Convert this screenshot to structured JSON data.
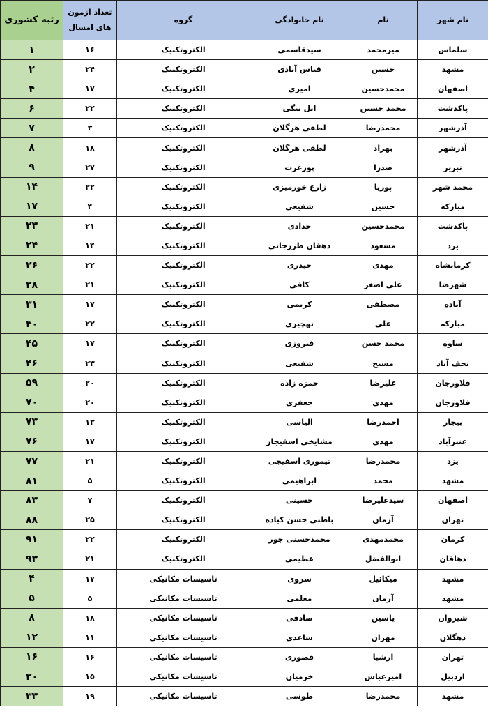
{
  "table": {
    "headers": {
      "city": "نام شهر",
      "first_name": "نام",
      "last_name": "نام خانوادگی",
      "group": "گروه",
      "exam_count_line1": "تعداد آزمون",
      "exam_count_line2": "های امسال",
      "national_rank": "رتبه کشوری"
    },
    "colors": {
      "header_bg": "#b4c6e7",
      "rank_header_bg": "#a9d08e",
      "rank_cell_bg": "#c6e0b4"
    },
    "rows": [
      [
        "سلماس",
        "میرمحمد",
        "سیدقاسمی",
        "الکتروتکنیک",
        "۱۶",
        "۱"
      ],
      [
        "مشهد",
        "حسین",
        "قیاس آبادی",
        "الکتروتکنیک",
        "۲۴",
        "۲"
      ],
      [
        "اصفهان",
        "محمدحسین",
        "امیری",
        "الکتروتکنیک",
        "۱۷",
        "۴"
      ],
      [
        "پاکدشت",
        "محمد حسین",
        "ایل بیگی",
        "الکتروتکنیک",
        "۲۲",
        "۶"
      ],
      [
        "آذرشهر",
        "محمدرضا",
        "لطفی هرگلان",
        "الکتروتکنیک",
        "۳",
        "۷"
      ],
      [
        "آذرشهر",
        "بهزاد",
        "لطفی هرگلان",
        "الکتروتکنیک",
        "۱۸",
        "۸"
      ],
      [
        "تبریز",
        "صدرا",
        "پورعزت",
        "الکتروتکنیک",
        "۲۷",
        "۹"
      ],
      [
        "محمد شهر",
        "پوریا",
        "زارع خورمیزی",
        "الکتروتکنیک",
        "۲۲",
        "۱۴"
      ],
      [
        "مبارکه",
        "حسین",
        "شفیعی",
        "الکتروتکنیک",
        "۴",
        "۱۷"
      ],
      [
        "پاکدشت",
        "محمدحسین",
        "حدادی",
        "الکتروتکنیک",
        "۲۱",
        "۲۳"
      ],
      [
        "یزد",
        "مسعود",
        "دهقان طزرجانی",
        "الکتروتکنیک",
        "۱۴",
        "۲۴"
      ],
      [
        "کرمانشاه",
        "مهدی",
        "حیدری",
        "الکتروتکنیک",
        "۲۲",
        "۲۶"
      ],
      [
        "شهرضا",
        "علی اصغر",
        "کافی",
        "الکتروتکنیک",
        "۲۱",
        "۲۸"
      ],
      [
        "آباده",
        "مصطفی",
        "کریمی",
        "الکتروتکنیک",
        "۱۷",
        "۳۱"
      ],
      [
        "مبارکه",
        "علی",
        "نهچیری",
        "الکتروتکنیک",
        "۲۲",
        "۴۰"
      ],
      [
        "ساوه",
        "محمد حسن",
        "فیروزی",
        "الکتروتکنیک",
        "۱۷",
        "۴۵"
      ],
      [
        "نجف آباد",
        "مسیح",
        "شفیعی",
        "الکتروتکنیک",
        "۲۳",
        "۴۶"
      ],
      [
        "فلاورجان",
        "علیرضا",
        "حمزه زاده",
        "الکتروتکنیک",
        "۲۰",
        "۵۹"
      ],
      [
        "فلاورجان",
        "مهدی",
        "جعفری",
        "الکتروتکنیک",
        "۲۰",
        "۷۰"
      ],
      [
        "بیجار",
        "احمدرضا",
        "الیاسی",
        "الکتروتکنیک",
        "۱۳",
        "۷۳"
      ],
      [
        "عنبرآباد",
        "مهدی",
        "مشایخی اسفیجار",
        "الکتروتکنیک",
        "۱۷",
        "۷۶"
      ],
      [
        "یزد",
        "محمدرضا",
        "تیموری اسفیجی",
        "الکتروتکنیک",
        "۲۱",
        "۷۷"
      ],
      [
        "مشهد",
        "محمد",
        "ابراهیمی",
        "الکتروتکنیک",
        "۵",
        "۸۱"
      ],
      [
        "اصفهان",
        "سیدعلیرضا",
        "حسینی",
        "الکتروتکنیک",
        "۷",
        "۸۳"
      ],
      [
        "تهران",
        "آرمان",
        "باطنی حسن کیاده",
        "الکتروتکنیک",
        "۲۵",
        "۸۸"
      ],
      [
        "کرمان",
        "محمدمهدی",
        "محمدحسنی جور",
        "الکتروتکنیک",
        "۲۲",
        "۹۱"
      ],
      [
        "دهاقان",
        "ابوالفضل",
        "عظیمی",
        "الکتروتکنیک",
        "۲۱",
        "۹۳"
      ],
      [
        "مشهد",
        "میکائیل",
        "سروی",
        "تاسیسات مکانیکی",
        "۱۷",
        "۴"
      ],
      [
        "مشهد",
        "آرمان",
        "معلمی",
        "تاسیسات مکانیکی",
        "۵",
        "۵"
      ],
      [
        "شیروان",
        "یاسین",
        "صادقی",
        "تاسیسات مکانیکی",
        "۱۸",
        "۸"
      ],
      [
        "دهگلان",
        "مهران",
        "ساعدی",
        "تاسیسات مکانیکی",
        "۱۱",
        "۱۲"
      ],
      [
        "تهران",
        "ارشیا",
        "قصوری",
        "تاسیسات مکانیکی",
        "۱۶",
        "۱۶"
      ],
      [
        "اردبیل",
        "امیرعباس",
        "خرمیان",
        "تاسیسات مکانیکی",
        "۱۵",
        "۲۰"
      ],
      [
        "مشهد",
        "محمدرضا",
        "طوسی",
        "تاسیسات مکانیکی",
        "۱۹",
        "۳۳"
      ]
    ]
  }
}
